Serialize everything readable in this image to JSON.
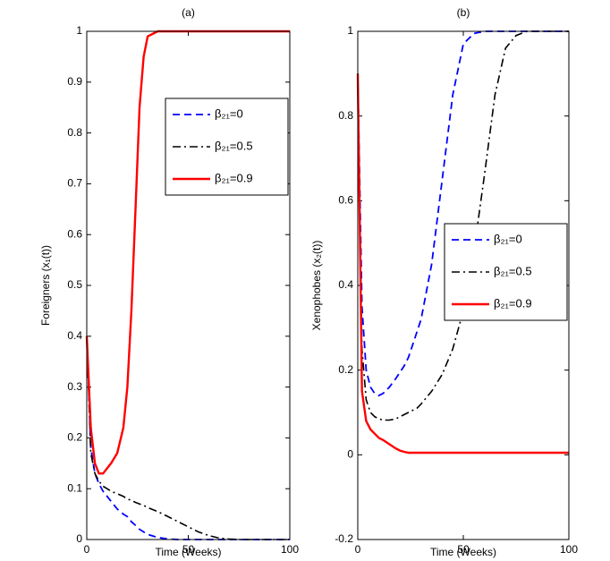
{
  "chart_data": [
    {
      "type": "line",
      "title": "(a)",
      "xlabel": "Time (Weeks)",
      "ylabel": "Foreigners (x₁(t))",
      "x": [
        0,
        2,
        4,
        6,
        8,
        10,
        12,
        15,
        18,
        20,
        22,
        24,
        26,
        28,
        30,
        35,
        40,
        45,
        50,
        55,
        60,
        65,
        70,
        75,
        80,
        90,
        100
      ],
      "xlim": [
        0,
        100
      ],
      "xticks": [
        0,
        50,
        100
      ],
      "ylim": [
        0,
        1
      ],
      "yticks": [
        0,
        0.1,
        0.2,
        0.3,
        0.4,
        0.5,
        0.6,
        0.7,
        0.8,
        0.9,
        1
      ],
      "legend": "upper right",
      "series": [
        {
          "name": "β₂₁=0",
          "color": "#0000ff",
          "style": "dashed",
          "values": [
            0.4,
            0.18,
            0.13,
            0.11,
            0.095,
            0.085,
            0.075,
            0.06,
            0.05,
            0.045,
            0.035,
            0.028,
            0.02,
            0.015,
            0.01,
            0.004,
            0.001,
            0,
            0,
            0,
            0,
            0,
            0,
            0,
            0,
            0,
            0
          ]
        },
        {
          "name": "β₂₁=0.5",
          "color": "#000000",
          "style": "dashdot",
          "values": [
            0.4,
            0.17,
            0.13,
            0.115,
            0.105,
            0.1,
            0.095,
            0.09,
            0.085,
            0.08,
            0.077,
            0.073,
            0.07,
            0.067,
            0.063,
            0.055,
            0.045,
            0.035,
            0.025,
            0.015,
            0.008,
            0.003,
            0.001,
            0,
            0,
            0,
            0
          ]
        },
        {
          "name": "β₂₁=0.9",
          "color": "#ff0000",
          "style": "solid",
          "values": [
            0.4,
            0.22,
            0.15,
            0.13,
            0.13,
            0.14,
            0.15,
            0.17,
            0.22,
            0.3,
            0.45,
            0.65,
            0.85,
            0.95,
            0.99,
            1,
            1,
            1,
            1,
            1,
            1,
            1,
            1,
            1,
            1,
            1,
            1
          ]
        }
      ]
    },
    {
      "type": "line",
      "title": "(b)",
      "xlabel": "Time (Weeks)",
      "ylabel": "Xenophobes (x₂(t))",
      "x": [
        0,
        2,
        4,
        6,
        8,
        10,
        12,
        15,
        18,
        20,
        22,
        24,
        26,
        28,
        30,
        35,
        40,
        45,
        50,
        55,
        60,
        65,
        70,
        75,
        80,
        90,
        100
      ],
      "xlim": [
        0,
        100
      ],
      "xticks": [
        0,
        50,
        100
      ],
      "ylim": [
        -0.2,
        1
      ],
      "yticks": [
        -0.2,
        0,
        0.2,
        0.4,
        0.6,
        0.8,
        1
      ],
      "legend": "center right",
      "series": [
        {
          "name": "β₂₁=0",
          "color": "#0000ff",
          "style": "dashed",
          "values": [
            0.9,
            0.35,
            0.2,
            0.16,
            0.145,
            0.14,
            0.145,
            0.16,
            0.18,
            0.195,
            0.21,
            0.23,
            0.26,
            0.29,
            0.32,
            0.45,
            0.65,
            0.85,
            0.97,
            0.995,
            1,
            1,
            1,
            1,
            1,
            1,
            1
          ]
        },
        {
          "name": "β₂₁=0.5",
          "color": "#000000",
          "style": "dashdot",
          "values": [
            0.9,
            0.25,
            0.13,
            0.1,
            0.09,
            0.085,
            0.082,
            0.082,
            0.085,
            0.09,
            0.095,
            0.1,
            0.105,
            0.11,
            0.12,
            0.15,
            0.19,
            0.25,
            0.34,
            0.48,
            0.66,
            0.85,
            0.96,
            0.99,
            1,
            1,
            1
          ]
        },
        {
          "name": "β₂₁=0.9",
          "color": "#ff0000",
          "style": "solid",
          "values": [
            0.9,
            0.15,
            0.08,
            0.06,
            0.05,
            0.04,
            0.035,
            0.025,
            0.015,
            0.01,
            0.007,
            0.005,
            0.005,
            0.005,
            0.005,
            0.005,
            0.005,
            0.005,
            0.005,
            0.005,
            0.005,
            0.005,
            0.005,
            0.005,
            0.005,
            0.005,
            0.005
          ]
        }
      ]
    }
  ]
}
